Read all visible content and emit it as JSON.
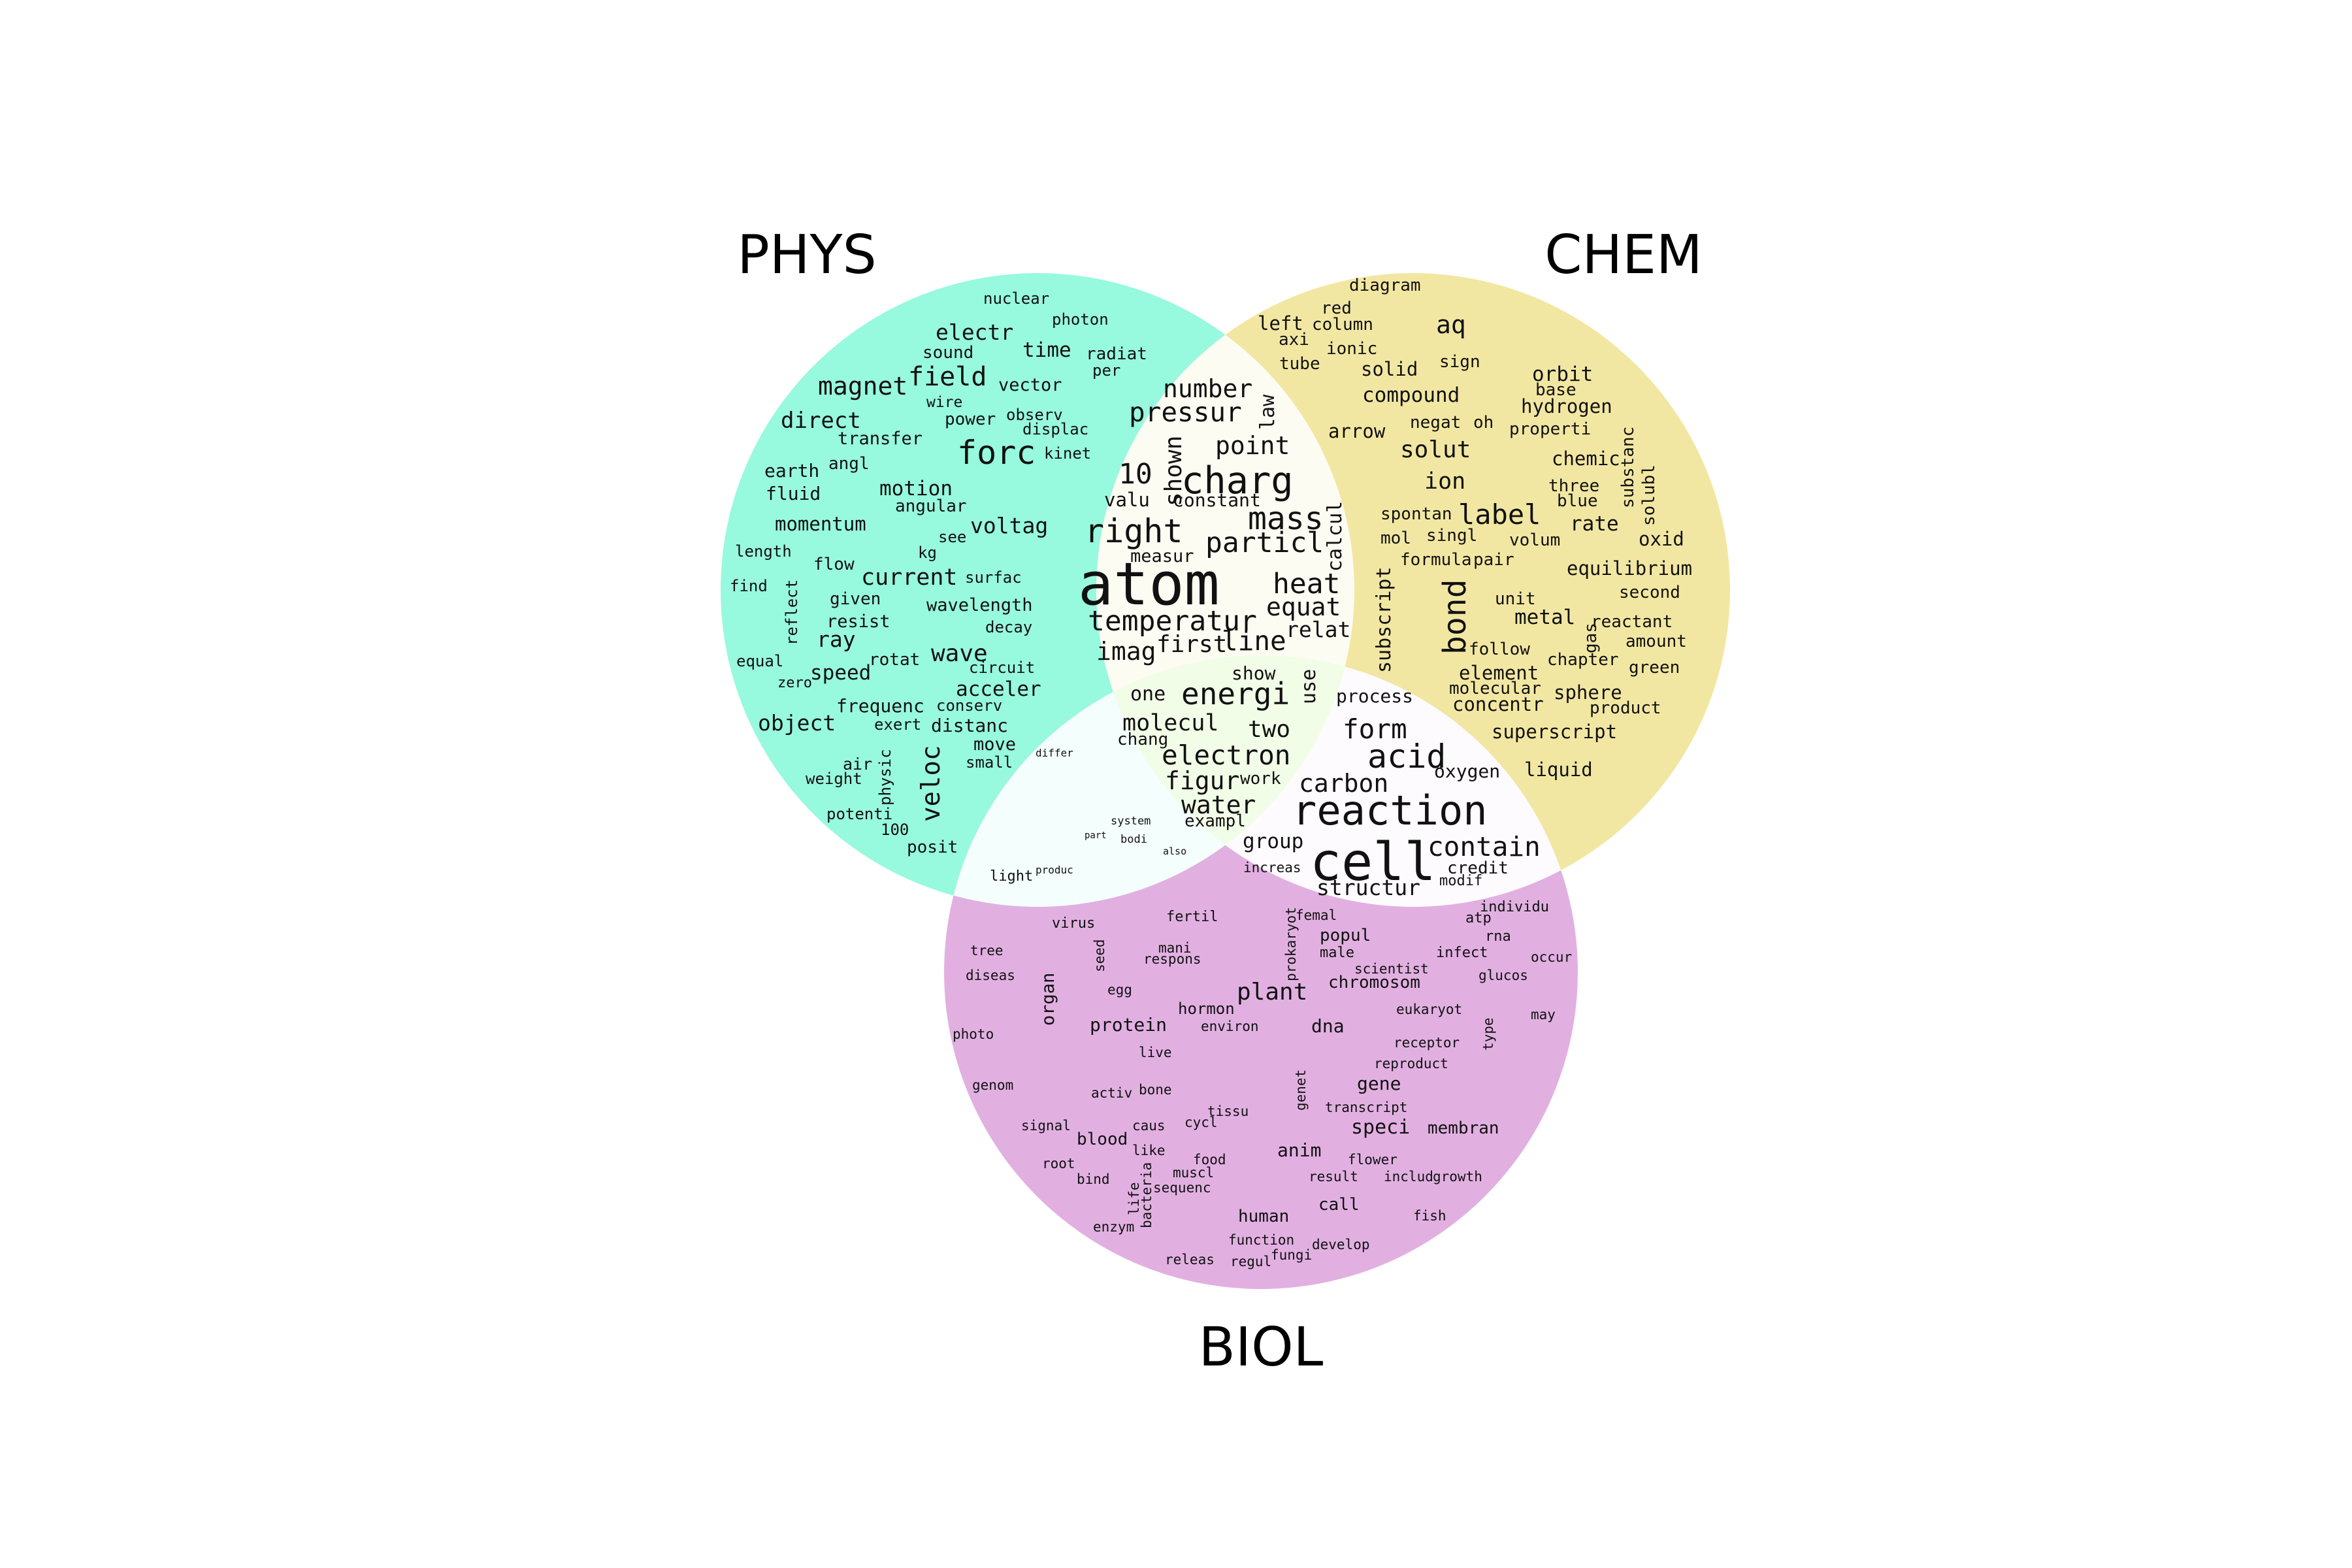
{
  "sets": [
    {
      "id": "phys",
      "label": "PHYS",
      "color": "#97f9de"
    },
    {
      "id": "chem",
      "label": "CHEM",
      "color": "#f2e7a2"
    },
    {
      "id": "biol",
      "label": "BIOL",
      "color": "#e1b0e1"
    }
  ],
  "overlap_colors": {
    "phys_chem": "#fcfcf3",
    "phys_biol": "#f4fefc",
    "chem_biol": "#fefbfe",
    "all": "#f2fde8"
  },
  "words": {
    "phys": [
      "nuclear",
      "photon",
      "electr",
      "sound",
      "time",
      "radiat",
      "per",
      "magnet",
      "field",
      "vector",
      "wire",
      "direct",
      "power",
      "observ",
      "transfer",
      "displac",
      "forc",
      "kinet",
      "earth",
      "angl",
      "fluid",
      "motion",
      "angular",
      "momentum",
      "voltag",
      "see",
      "length",
      "kg",
      "flow",
      "current",
      "surfac",
      "find",
      "given",
      "wavelength",
      "reflect",
      "resist",
      "decay",
      "ray",
      "equal",
      "rotat",
      "wave",
      "zero",
      "speed",
      "circuit",
      "acceler",
      "frequenc",
      "conserv",
      "object",
      "exert",
      "distanc",
      "move",
      "air",
      "small",
      "veloc",
      "physic",
      "weight",
      "potenti",
      "100",
      "posit"
    ],
    "chem": [
      "diagram",
      "red",
      "left",
      "column",
      "axi",
      "ionic",
      "aq",
      "tube",
      "solid",
      "sign",
      "orbit",
      "base",
      "compound",
      "hydrogen",
      "arrow",
      "negat",
      "oh",
      "properti",
      "solut",
      "chemic",
      "substanc",
      "ion",
      "three",
      "solubl",
      "blue",
      "label",
      "spontan",
      "rate",
      "mol",
      "singl",
      "volum",
      "oxid",
      "formula",
      "pair",
      "equilibrium",
      "unit",
      "second",
      "bond",
      "subscript",
      "metal",
      "gas",
      "reactant",
      "amount",
      "follow",
      "chapter",
      "element",
      "green",
      "molecular",
      "sphere",
      "concentr",
      "product",
      "superscript",
      "liquid"
    ],
    "biol": [
      "individu",
      "virus",
      "fertil",
      "femal",
      "atp",
      "tree",
      "mani",
      "seed",
      "popul",
      "rna",
      "infect",
      "respons",
      "male",
      "occur",
      "prokaryot",
      "scientist",
      "diseas",
      "glucos",
      "egg",
      "chromosom",
      "plant",
      "organ",
      "hormon",
      "eukaryot",
      "may",
      "photo",
      "protein",
      "environ",
      "dna",
      "type",
      "receptor",
      "live",
      "reproduct",
      "genom",
      "gene",
      "activ",
      "bone",
      "genet",
      "transcript",
      "tissu",
      "signal",
      "caus",
      "cycl",
      "speci",
      "membran",
      "blood",
      "like",
      "anim",
      "root",
      "flower",
      "food",
      "muscl",
      "bind",
      "life",
      "result",
      "includ",
      "growth",
      "sequenc",
      "bacteria",
      "call",
      "human",
      "fish",
      "enzym",
      "function",
      "develop",
      "fungi",
      "releas",
      "regul"
    ],
    "phys_chem": [
      "number",
      "law",
      "pressur",
      "point",
      "10",
      "shown",
      "charg",
      "valu",
      "constant",
      "mass",
      "right",
      "calcul",
      "particl",
      "measur",
      "atom",
      "heat",
      "equat",
      "temperatur",
      "relat",
      "imag",
      "first",
      "line"
    ],
    "phys_biol": [
      "differ",
      "system",
      "part",
      "bodi",
      "also",
      "light",
      "produc"
    ],
    "chem_biol": [
      "process",
      "form",
      "acid",
      "oxygen",
      "carbon",
      "reaction",
      "group",
      "contain",
      "cell",
      "increas",
      "credit",
      "modif",
      "structur"
    ],
    "all": [
      "show",
      "use",
      "one",
      "energi",
      "molecul",
      "chang",
      "two",
      "electron",
      "figur",
      "work",
      "water",
      "exampl"
    ]
  }
}
